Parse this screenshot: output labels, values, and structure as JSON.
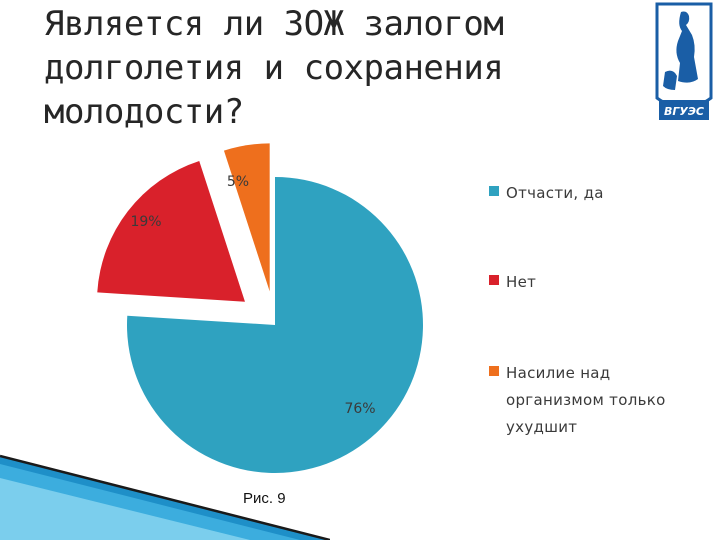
{
  "slide": {
    "title_lines": [
      "Является ли ЗОЖ залогом",
      "долголетия и сохранения",
      "молодости?"
    ],
    "caption": "Рис. 9",
    "logo_text": "ВГУЭС"
  },
  "chart_data": {
    "type": "pie",
    "title": "",
    "slices": [
      {
        "label": "Отчасти, да",
        "value": 76,
        "display": "76%",
        "color": "#2fa2c0"
      },
      {
        "label": "Нет",
        "value": 19,
        "display": "19%",
        "color": "#d9212b"
      },
      {
        "label": "Насилие над организмом только ухудшит",
        "value": 5,
        "display": "5%",
        "color": "#ee6f1d"
      }
    ],
    "legend": {
      "position": "right",
      "entries": [
        {
          "lines": [
            "Отчасти, да"
          ]
        },
        {
          "lines": [
            "Нет"
          ]
        },
        {
          "lines": [
            "Насилие над",
            "организмом только",
            "ухудшит"
          ]
        }
      ]
    }
  }
}
